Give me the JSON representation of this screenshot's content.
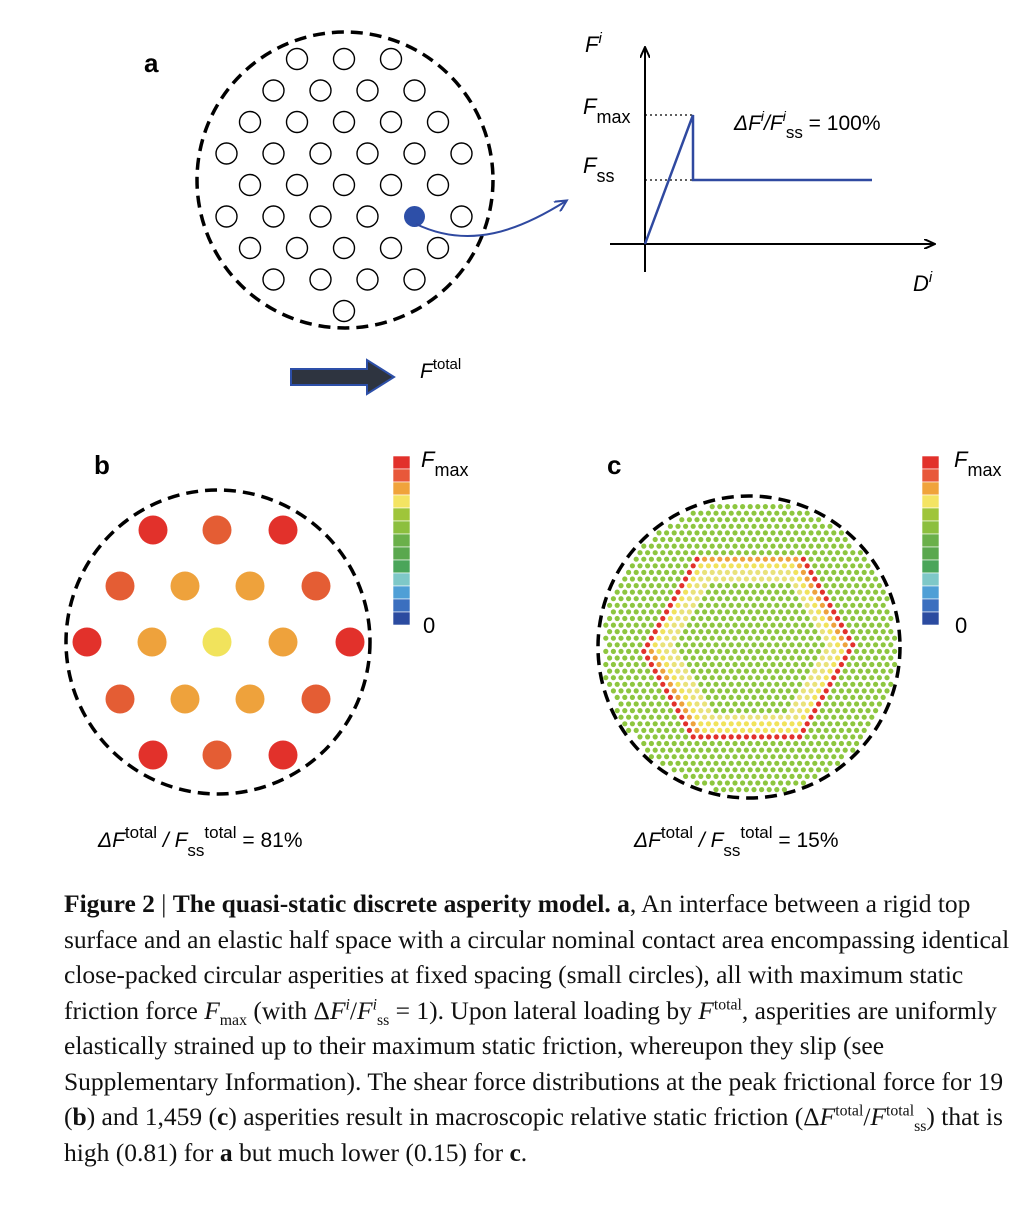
{
  "panel_a": {
    "label": "a",
    "graph": {
      "y_axis_label": "F",
      "y_axis_sup": "i",
      "x_axis_label": "D",
      "x_axis_sup": "i",
      "fmax_label": "F",
      "fmax_sub": "max",
      "fss_label": "F",
      "fss_sub": "ss",
      "ratio_a": "ΔF",
      "ratio_sup1": "i",
      "ratio_b": "/F",
      "ratio_sup2": "i",
      "ratio_sub": "ss",
      "ratio_value": " = 100%"
    },
    "force_label": "F",
    "force_sup": "total"
  },
  "panel_b": {
    "label": "b",
    "colorbar_top_label": "F",
    "colorbar_top_sub": "max",
    "colorbar_bottom_label": "0",
    "result_a": "ΔF",
    "result_sup1": "total",
    "result_b": " / F",
    "result_sub": "ss",
    "result_sup2": "total",
    "result_value": " = 81%"
  },
  "panel_c": {
    "label": "c",
    "colorbar_top_label": "F",
    "colorbar_top_sub": "max",
    "colorbar_bottom_label": "0",
    "result_a": "ΔF",
    "result_sup1": "total",
    "result_b": " / F",
    "result_sub": "ss",
    "result_sup2": "total",
    "result_value": " = 15%"
  },
  "colorbar_colors": [
    "#e2312b",
    "#e8583a",
    "#f0a33b",
    "#f4e463",
    "#9fc53a",
    "#8cbf3e",
    "#6ab04a",
    "#5aa84e",
    "#4aa55a",
    "#7ec8c8",
    "#4f9fd6",
    "#3b6fbf",
    "#2b4ba0"
  ],
  "colors": {
    "asperity_outline": "#000000",
    "highlight_asperity": "#2d4fa8",
    "graph_line": "#2f49a0",
    "arrow_fill": "#2e3440",
    "arrow_outline": "#2d4fa8",
    "red": "#e2312b",
    "orange_red": "#e45d34",
    "orange": "#eea23c",
    "yellow": "#f1e35c",
    "green": "#8dc63f"
  },
  "caption": {
    "fig_label": "Figure 2",
    "separator": " | ",
    "title": "The quasi-static discrete asperity model.",
    "part_a_label": "a",
    "text_1": ", An interface between a rigid top surface and an elastic half space with a circular nominal contact area encompassing identical close-packed circular asperities at fixed spacing (small circles), all with maximum static friction force ",
    "fmax_sym": "F",
    "fmax_sub": "max",
    "text_2": " (with Δ",
    "fi_sym": "F",
    "fi_sup": "i",
    "text_slash": "/",
    "fss_sym": "F",
    "fss_sup": "i",
    "fss_sub": "ss",
    "text_3": " = 1). Upon lateral loading by ",
    "ftot_sym": "F",
    "ftot_sup": "total",
    "text_4": ", asperities are uniformly elastically strained up to their maximum static friction, whereupon they slip (see Supplementary Information). The shear force distributions at the peak frictional force for 19 (",
    "b_label": "b",
    "text_5": ") and 1,459 (",
    "c_label": "c",
    "text_6": ") asperities result in macroscopic relative static friction (Δ",
    "ratio_sym": "F",
    "ratio_sup": "total",
    "ratio_slash": "/",
    "ratio_sym2": "F",
    "ratio_sup2": "total",
    "ratio_sub2": "ss",
    "text_7": ") that is high (0.81) for ",
    "a_label2": "a",
    "text_8": " but much lower (0.15) for ",
    "c_label2": "c",
    "text_9": "."
  }
}
